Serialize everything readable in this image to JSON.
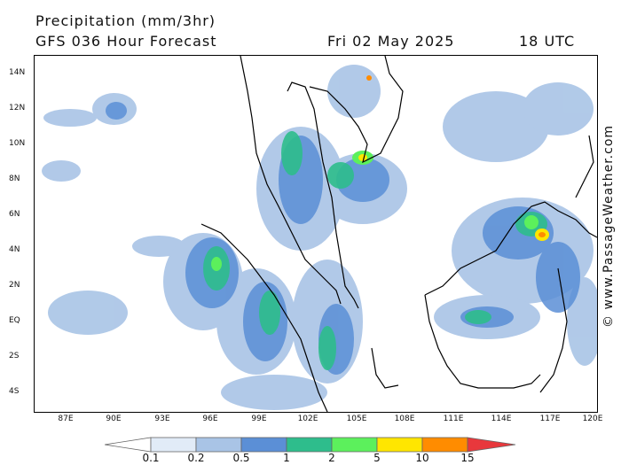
{
  "header": {
    "title": "Precipitation (mm/3hr)",
    "subtitle": "GFS 036 Hour Forecast",
    "date": "Fri 02 May 2025",
    "time": "18 UTC"
  },
  "map": {
    "y_labels": [
      "14N",
      "12N",
      "10N",
      "8N",
      "6N",
      "4N",
      "2N",
      "EQ",
      "2S",
      "4S"
    ],
    "x_labels": [
      "87E",
      "90E",
      "93E",
      "96E",
      "99E",
      "102E",
      "105E",
      "108E",
      "111E",
      "114E",
      "117E",
      "120E"
    ],
    "watermark": "© www.PassageWeather.com"
  },
  "legend": {
    "labels": [
      "0.1",
      "0.2",
      "0.5",
      "1",
      "2",
      "5",
      "10",
      "15"
    ],
    "colors": [
      "#ffffff",
      "#e1ebf7",
      "#a9c4e6",
      "#5b8fd6",
      "#2ebd8c",
      "#5cf05c",
      "#ffe600",
      "#ff8c00",
      "#e8383c"
    ]
  }
}
